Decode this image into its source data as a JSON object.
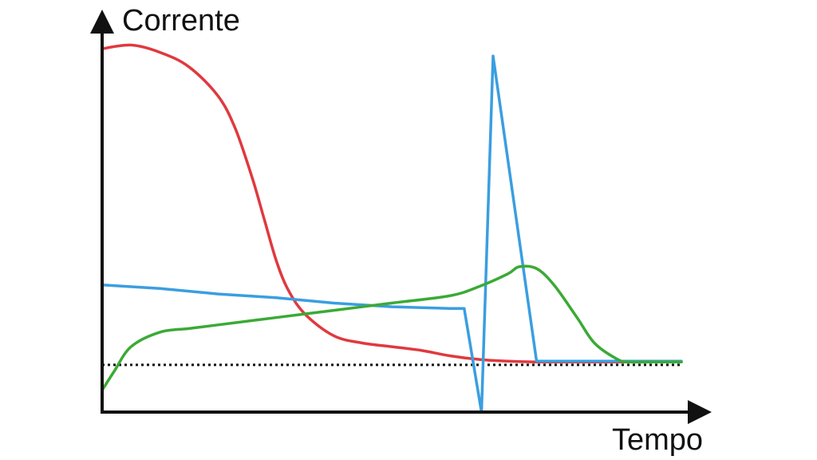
{
  "chart_data": {
    "type": "line",
    "title": "",
    "ylabel": "Corrente",
    "xlabel": "Tempo",
    "xlim": [
      0,
      100
    ],
    "ylim": [
      0,
      100
    ],
    "grid": false,
    "axis_ticks": false,
    "baseline": {
      "y": 13,
      "style": "dotted",
      "color": "#111111"
    },
    "series": [
      {
        "color": "#e0393e",
        "points": [
          [
            0,
            100
          ],
          [
            5,
            101
          ],
          [
            10,
            99
          ],
          [
            15,
            95
          ],
          [
            20,
            87
          ],
          [
            23,
            78
          ],
          [
            26,
            64
          ],
          [
            28,
            53
          ],
          [
            30,
            42
          ],
          [
            32,
            34
          ],
          [
            35,
            27
          ],
          [
            40,
            21
          ],
          [
            45,
            19
          ],
          [
            50,
            18
          ],
          [
            55,
            17
          ],
          [
            60,
            15.5
          ],
          [
            65,
            14.5
          ],
          [
            70,
            14
          ],
          [
            75,
            13.8
          ],
          [
            80,
            13.8
          ],
          [
            85,
            13.8
          ],
          [
            90,
            13.8
          ],
          [
            100,
            13.8
          ]
        ]
      },
      {
        "color": "#3a9ee0",
        "points": [
          [
            0,
            35
          ],
          [
            10,
            34
          ],
          [
            20,
            32.5
          ],
          [
            30,
            31.5
          ],
          [
            40,
            30
          ],
          [
            50,
            29
          ],
          [
            60,
            28.5
          ],
          [
            62.5,
            28.5
          ],
          [
            65.5,
            0
          ],
          [
            67.5,
            98
          ],
          [
            75,
            14
          ],
          [
            80,
            14
          ],
          [
            100,
            14
          ]
        ]
      },
      {
        "color": "#3aaa35",
        "points": [
          [
            0,
            6
          ],
          [
            2,
            11
          ],
          [
            5,
            18
          ],
          [
            10,
            22
          ],
          [
            15,
            23
          ],
          [
            20,
            24
          ],
          [
            30,
            26
          ],
          [
            40,
            28
          ],
          [
            50,
            30
          ],
          [
            60,
            32
          ],
          [
            65,
            34.5
          ],
          [
            70,
            38
          ],
          [
            72,
            40
          ],
          [
            75,
            39.5
          ],
          [
            78,
            35
          ],
          [
            82,
            26
          ],
          [
            85,
            19
          ],
          [
            89,
            14.5
          ],
          [
            91,
            13.8
          ],
          [
            95,
            13.8
          ],
          [
            100,
            13.8
          ]
        ]
      }
    ]
  }
}
